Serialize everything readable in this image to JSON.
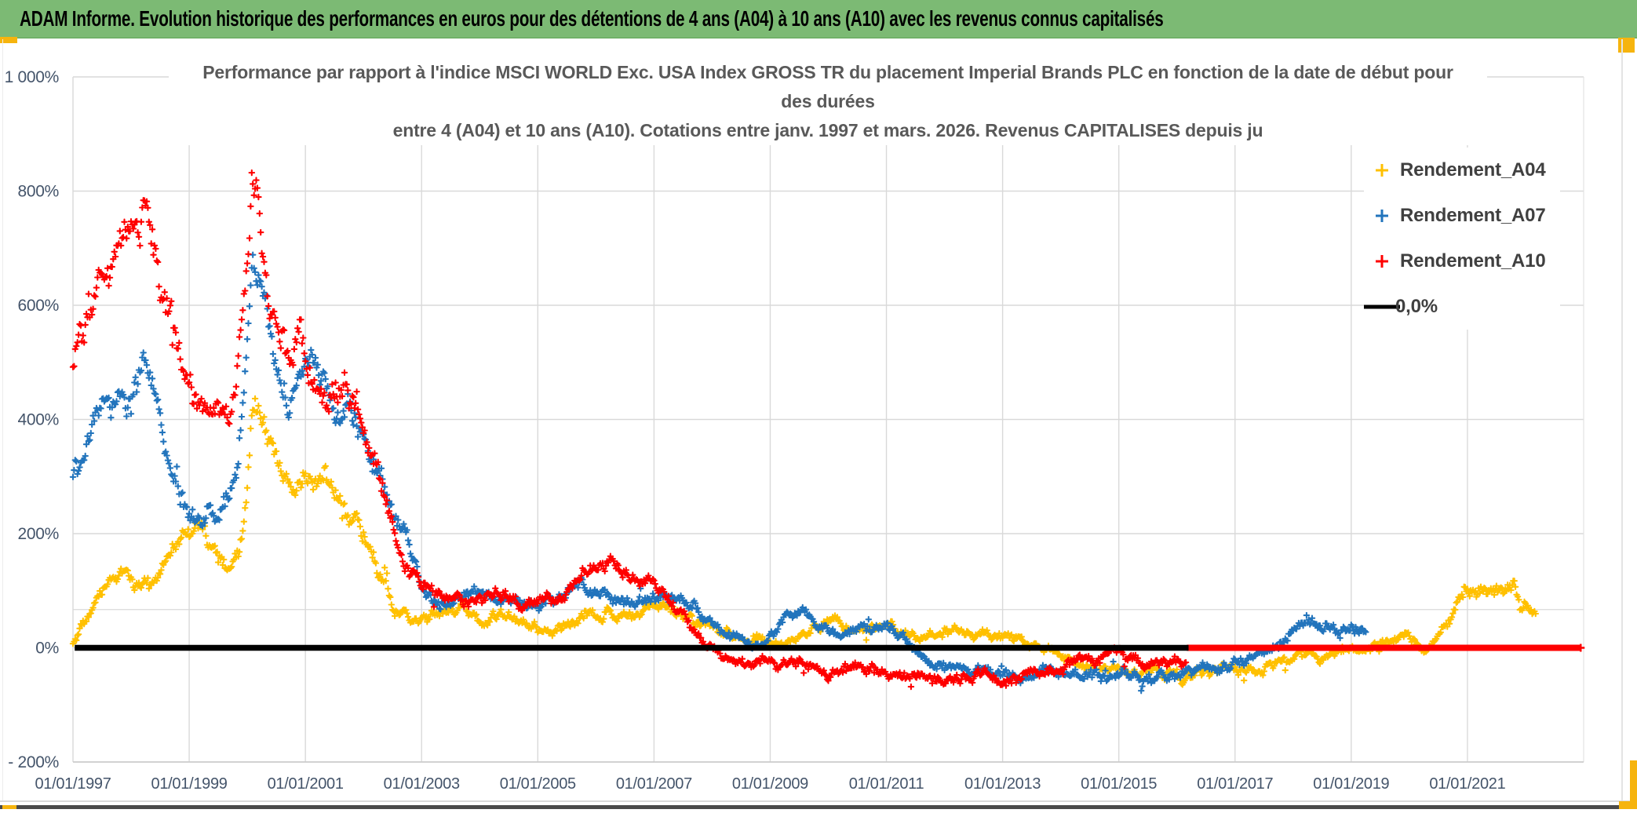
{
  "banner": {
    "text": "ADAM Informe. Evolution historique des performances en euros pour des détentions de 4 ans (A04) à 10 ans (A10) avec les revenus connus capitalisés",
    "bg_color": "#7cba74"
  },
  "frame": {
    "accent_color": "#f6b40e"
  },
  "chart": {
    "title_lines": [
      "Performance par rapport à l'indice MSCI WORLD Exc. USA Index GROSS TR  du placement Imperial Brands PLC en fonction de la date de début pour",
      "des durées",
      "entre 4 (A04) et 10 ans (A10). Cotations entre janv. 1997 et mars. 2026. Revenus CAPITALISES depuis ju"
    ],
    "legend": {
      "items": [
        {
          "label": "Rendement_A04",
          "color": "#FFC000",
          "marker": "plus"
        },
        {
          "label": "Rendement_A07",
          "color": "#2274BC",
          "marker": "plus"
        },
        {
          "label": "Rendement_A10",
          "color": "#FE0000",
          "marker": "plus"
        },
        {
          "label": "0,0%",
          "color": "#000000",
          "marker": "line"
        }
      ]
    }
  },
  "chart_data": {
    "type": "scatter",
    "title": "Performance par rapport à l'indice MSCI WORLD Exc. USA Index GROSS TR du placement Imperial Brands PLC en fonction de la date de début pour des durées entre 4 (A04) et 10 ans (A10). Cotations entre janv. 1997 et mars. 2026. Revenus CAPITALISES depuis ju",
    "xlabel": "",
    "ylabel": "",
    "grid": true,
    "legend_position": "top-right",
    "marker": "plus",
    "x_axis": {
      "min": 1997.0,
      "max": 2023.0,
      "tick_years": [
        1997,
        1999,
        2001,
        2003,
        2005,
        2007,
        2009,
        2011,
        2013,
        2015,
        2017,
        2019,
        2021
      ],
      "tick_labels": [
        "01/01/1997",
        "01/01/1999",
        "01/01/2001",
        "01/01/2003",
        "01/01/2005",
        "01/01/2007",
        "01/01/2009",
        "01/01/2011",
        "01/01/2013",
        "01/01/2015",
        "01/01/2017",
        "01/01/2019",
        "01/01/2021"
      ]
    },
    "y_axis": {
      "min": -200,
      "max": 1000,
      "ticks": [
        1000,
        800,
        600,
        400,
        200,
        0,
        -200
      ],
      "tick_labels": [
        "1 000%",
        "800%",
        "600%",
        "400%",
        "200%",
        "0%",
        "- 200%"
      ],
      "extra_faint_line_pct": 67,
      "unit": "percent"
    },
    "series": [
      {
        "name": "Rendement_A04",
        "color": "#FFC000",
        "points_per_year": 52,
        "anchors": [
          [
            1997.0,
            10
          ],
          [
            1997.2,
            40
          ],
          [
            1997.4,
            75
          ],
          [
            1997.6,
            105
          ],
          [
            1997.8,
            135
          ],
          [
            1998.0,
            125
          ],
          [
            1998.2,
            115
          ],
          [
            1998.4,
            110
          ],
          [
            1998.6,
            145
          ],
          [
            1998.8,
            175
          ],
          [
            1999.0,
            195
          ],
          [
            1999.2,
            225
          ],
          [
            1999.35,
            190
          ],
          [
            1999.5,
            150
          ],
          [
            1999.7,
            135
          ],
          [
            1999.85,
            170
          ],
          [
            2000.0,
            300
          ],
          [
            2000.1,
            455
          ],
          [
            2000.2,
            430
          ],
          [
            2000.35,
            360
          ],
          [
            2000.5,
            330
          ],
          [
            2000.7,
            290
          ],
          [
            2000.9,
            300
          ],
          [
            2001.1,
            315
          ],
          [
            2001.3,
            300
          ],
          [
            2001.5,
            285
          ],
          [
            2001.7,
            260
          ],
          [
            2001.9,
            230
          ],
          [
            2002.1,
            170
          ],
          [
            2002.3,
            120
          ],
          [
            2002.5,
            70
          ],
          [
            2002.7,
            50
          ],
          [
            2002.9,
            45
          ],
          [
            2003.1,
            55
          ],
          [
            2003.4,
            65
          ],
          [
            2003.7,
            70
          ],
          [
            2004.0,
            60
          ],
          [
            2004.3,
            55
          ],
          [
            2004.6,
            45
          ],
          [
            2004.9,
            35
          ],
          [
            2005.2,
            15
          ],
          [
            2005.5,
            35
          ],
          [
            2005.8,
            60
          ],
          [
            2006.1,
            55
          ],
          [
            2006.4,
            60
          ],
          [
            2006.7,
            50
          ],
          [
            2007.0,
            60
          ],
          [
            2007.3,
            70
          ],
          [
            2007.6,
            55
          ],
          [
            2007.9,
            35
          ],
          [
            2008.2,
            25
          ],
          [
            2008.5,
            20
          ],
          [
            2008.8,
            15
          ],
          [
            2009.0,
            5
          ],
          [
            2009.3,
            15
          ],
          [
            2009.6,
            28
          ],
          [
            2009.9,
            38
          ],
          [
            2010.2,
            42
          ],
          [
            2010.5,
            30
          ],
          [
            2010.8,
            35
          ],
          [
            2011.1,
            38
          ],
          [
            2011.4,
            30
          ],
          [
            2011.7,
            25
          ],
          [
            2012.0,
            28
          ],
          [
            2012.3,
            22
          ],
          [
            2012.6,
            18
          ],
          [
            2012.9,
            12
          ],
          [
            2013.2,
            18
          ],
          [
            2013.5,
            8
          ],
          [
            2013.8,
            -5
          ],
          [
            2014.1,
            -15
          ],
          [
            2014.4,
            -28
          ],
          [
            2014.7,
            -35
          ],
          [
            2015.0,
            -38
          ],
          [
            2015.3,
            -48
          ],
          [
            2015.6,
            -42
          ],
          [
            2015.9,
            -48
          ],
          [
            2016.2,
            -52
          ],
          [
            2016.5,
            -48
          ],
          [
            2016.8,
            -42
          ],
          [
            2017.1,
            -38
          ],
          [
            2017.4,
            -32
          ],
          [
            2017.7,
            -28
          ],
          [
            2018.0,
            -18
          ],
          [
            2018.3,
            -8
          ],
          [
            2018.6,
            -15
          ],
          [
            2018.9,
            -8
          ],
          [
            2019.2,
            -5
          ],
          [
            2019.45,
            5
          ],
          [
            2019.7,
            12
          ],
          [
            2019.9,
            25
          ],
          [
            2020.1,
            10
          ],
          [
            2020.25,
            -8
          ],
          [
            2020.4,
            5
          ],
          [
            2020.6,
            40
          ],
          [
            2020.8,
            70
          ],
          [
            2021.0,
            115
          ],
          [
            2021.15,
            100
          ],
          [
            2021.3,
            105
          ],
          [
            2021.5,
            112
          ],
          [
            2021.65,
            95
          ],
          [
            2021.8,
            108
          ],
          [
            2021.9,
            62
          ],
          [
            2022.0,
            70
          ],
          [
            2022.1,
            60
          ],
          [
            2022.18,
            55
          ]
        ]
      },
      {
        "name": "Rendement_A07",
        "color": "#2274BC",
        "points_per_year": 52,
        "anchors": [
          [
            1997.0,
            310
          ],
          [
            1997.2,
            360
          ],
          [
            1997.4,
            400
          ],
          [
            1997.6,
            420
          ],
          [
            1997.8,
            430
          ],
          [
            1998.0,
            425
          ],
          [
            1998.2,
            470
          ],
          [
            1998.4,
            430
          ],
          [
            1998.6,
            350
          ],
          [
            1998.8,
            280
          ],
          [
            1999.0,
            230
          ],
          [
            1999.2,
            215
          ],
          [
            1999.4,
            235
          ],
          [
            1999.6,
            260
          ],
          [
            1999.8,
            310
          ],
          [
            1999.95,
            450
          ],
          [
            2000.1,
            690
          ],
          [
            2000.2,
            640
          ],
          [
            2000.35,
            540
          ],
          [
            2000.5,
            480
          ],
          [
            2000.7,
            445
          ],
          [
            2000.9,
            470
          ],
          [
            2001.1,
            500
          ],
          [
            2001.3,
            455
          ],
          [
            2001.5,
            400
          ],
          [
            2001.7,
            425
          ],
          [
            2001.9,
            390
          ],
          [
            2002.1,
            340
          ],
          [
            2002.3,
            290
          ],
          [
            2002.5,
            240
          ],
          [
            2002.7,
            200
          ],
          [
            2002.9,
            150
          ],
          [
            2003.1,
            80
          ],
          [
            2003.3,
            70
          ],
          [
            2003.6,
            85
          ],
          [
            2003.9,
            100
          ],
          [
            2004.2,
            90
          ],
          [
            2004.5,
            75
          ],
          [
            2004.8,
            80
          ],
          [
            2005.1,
            85
          ],
          [
            2005.4,
            95
          ],
          [
            2005.7,
            110
          ],
          [
            2006.0,
            100
          ],
          [
            2006.3,
            90
          ],
          [
            2006.6,
            70
          ],
          [
            2006.9,
            85
          ],
          [
            2007.2,
            95
          ],
          [
            2007.5,
            80
          ],
          [
            2007.8,
            55
          ],
          [
            2008.1,
            30
          ],
          [
            2008.4,
            10
          ],
          [
            2008.7,
            -5
          ],
          [
            2009.0,
            15
          ],
          [
            2009.3,
            50
          ],
          [
            2009.6,
            65
          ],
          [
            2009.9,
            45
          ],
          [
            2010.2,
            20
          ],
          [
            2010.5,
            30
          ],
          [
            2010.8,
            40
          ],
          [
            2011.0,
            45
          ],
          [
            2011.2,
            25
          ],
          [
            2011.5,
            -5
          ],
          [
            2011.8,
            -25
          ],
          [
            2012.1,
            -35
          ],
          [
            2012.4,
            -45
          ],
          [
            2012.7,
            -50
          ],
          [
            2013.0,
            -52
          ],
          [
            2013.3,
            -48
          ],
          [
            2013.6,
            -50
          ],
          [
            2013.9,
            -45
          ],
          [
            2014.2,
            -50
          ],
          [
            2014.5,
            -52
          ],
          [
            2014.8,
            -48
          ],
          [
            2015.1,
            -45
          ],
          [
            2015.4,
            -50
          ],
          [
            2015.7,
            -52
          ],
          [
            2016.0,
            -50
          ],
          [
            2016.3,
            -45
          ],
          [
            2016.6,
            -38
          ],
          [
            2016.9,
            -28
          ],
          [
            2017.2,
            -15
          ],
          [
            2017.5,
            0
          ],
          [
            2017.8,
            15
          ],
          [
            2018.0,
            30
          ],
          [
            2018.25,
            55
          ],
          [
            2018.45,
            30
          ],
          [
            2018.6,
            40
          ],
          [
            2018.8,
            30
          ],
          [
            2019.0,
            42
          ],
          [
            2019.25,
            25
          ]
        ]
      },
      {
        "name": "Rendement_A10",
        "color": "#FE0000",
        "points_per_year": 52,
        "flat_zero_from": 2016.17,
        "flat_zero_to": 2022.95,
        "anchors": [
          [
            1997.0,
            490
          ],
          [
            1997.2,
            540
          ],
          [
            1997.4,
            600
          ],
          [
            1997.6,
            650
          ],
          [
            1997.8,
            680
          ],
          [
            1998.0,
            690
          ],
          [
            1998.2,
            760
          ],
          [
            1998.35,
            720
          ],
          [
            1998.5,
            640
          ],
          [
            1998.7,
            560
          ],
          [
            1998.9,
            480
          ],
          [
            1999.1,
            420
          ],
          [
            1999.3,
            390
          ],
          [
            1999.5,
            400
          ],
          [
            1999.7,
            420
          ],
          [
            1999.85,
            520
          ],
          [
            2000.0,
            700
          ],
          [
            2000.1,
            840
          ],
          [
            2000.2,
            800
          ],
          [
            2000.35,
            650
          ],
          [
            2000.5,
            570
          ],
          [
            2000.7,
            545
          ],
          [
            2000.9,
            555
          ],
          [
            2001.1,
            480
          ],
          [
            2001.3,
            420
          ],
          [
            2001.5,
            440
          ],
          [
            2001.7,
            470
          ],
          [
            2001.85,
            440
          ],
          [
            2002.0,
            400
          ],
          [
            2002.2,
            330
          ],
          [
            2002.4,
            250
          ],
          [
            2002.6,
            180
          ],
          [
            2002.8,
            140
          ],
          [
            2003.0,
            110
          ],
          [
            2003.2,
            90
          ],
          [
            2003.5,
            95
          ],
          [
            2003.8,
            85
          ],
          [
            2004.1,
            95
          ],
          [
            2004.4,
            85
          ],
          [
            2004.7,
            75
          ],
          [
            2005.0,
            80
          ],
          [
            2005.3,
            85
          ],
          [
            2005.6,
            110
          ],
          [
            2005.9,
            120
          ],
          [
            2006.2,
            150
          ],
          [
            2006.45,
            130
          ],
          [
            2006.7,
            115
          ],
          [
            2007.0,
            110
          ],
          [
            2007.2,
            85
          ],
          [
            2007.4,
            70
          ],
          [
            2007.6,
            45
          ],
          [
            2007.9,
            5
          ],
          [
            2008.2,
            -20
          ],
          [
            2008.5,
            -30
          ],
          [
            2008.8,
            -25
          ],
          [
            2009.1,
            -30
          ],
          [
            2009.4,
            -25
          ],
          [
            2009.7,
            -35
          ],
          [
            2010.0,
            -40
          ],
          [
            2010.3,
            -38
          ],
          [
            2010.6,
            -45
          ],
          [
            2010.9,
            -42
          ],
          [
            2011.2,
            -50
          ],
          [
            2011.5,
            -52
          ],
          [
            2011.8,
            -55
          ],
          [
            2012.1,
            -58
          ],
          [
            2012.4,
            -55
          ],
          [
            2012.7,
            -50
          ],
          [
            2013.0,
            -48
          ],
          [
            2013.3,
            -50
          ],
          [
            2013.6,
            -45
          ],
          [
            2013.9,
            -40
          ],
          [
            2014.2,
            -32
          ],
          [
            2014.5,
            -20
          ],
          [
            2014.8,
            -12
          ],
          [
            2015.0,
            -8
          ],
          [
            2015.2,
            -15
          ],
          [
            2015.5,
            -28
          ],
          [
            2015.8,
            -25
          ],
          [
            2016.0,
            -30
          ],
          [
            2016.17,
            -28
          ]
        ]
      },
      {
        "name": "0,0%",
        "type": "hline",
        "color": "#000000",
        "y": 0,
        "x_from": 1997.03,
        "x_to": 2016.2
      }
    ]
  }
}
